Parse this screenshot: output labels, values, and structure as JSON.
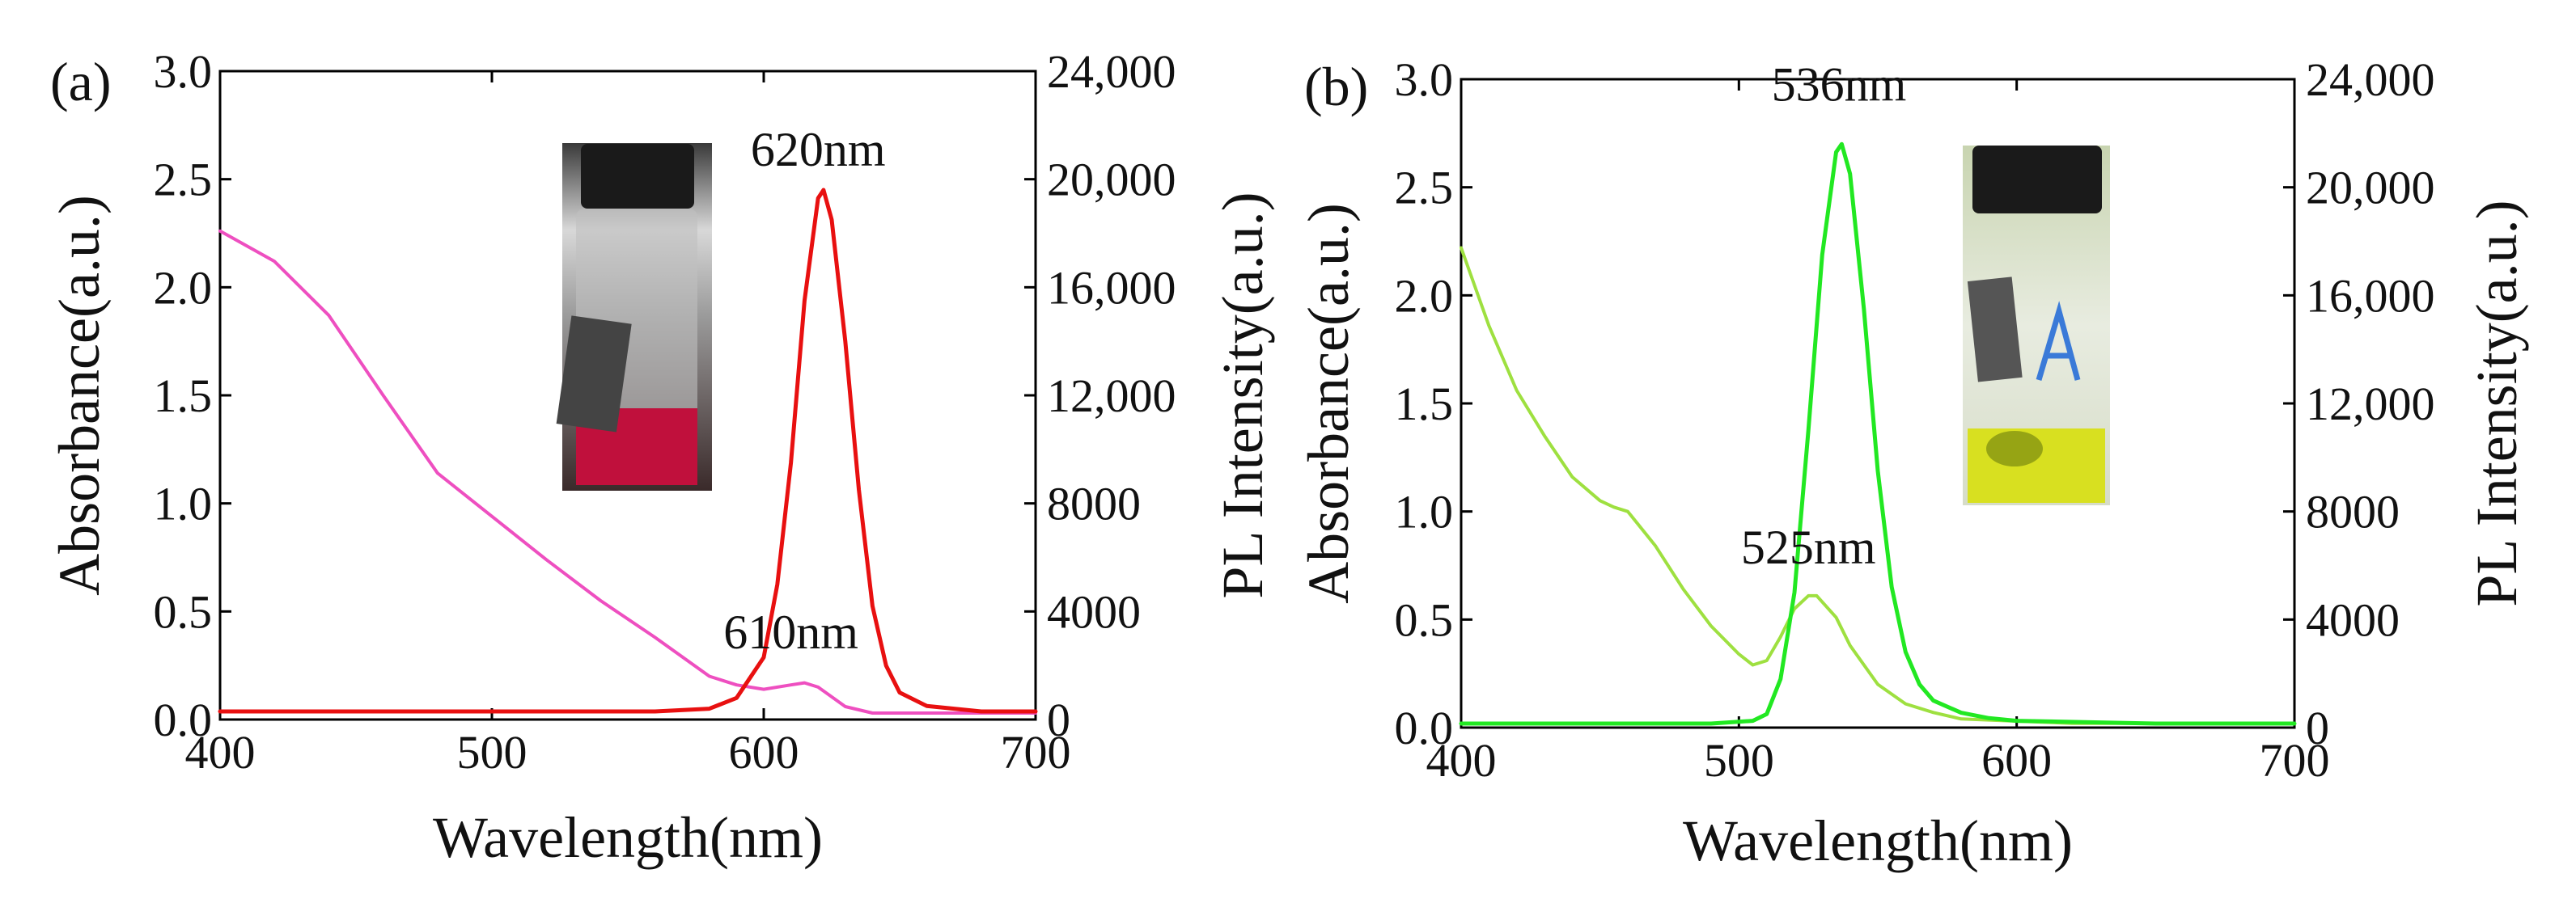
{
  "colors": {
    "abs_a": "#ee4fc0",
    "pl_a": "#e81010",
    "abs_b": "#9ee040",
    "pl_b": "#22e822",
    "vial_a_liquid": "#c0103c",
    "vial_b_liquid": "#d8e020"
  },
  "chart_data": [
    {
      "type": "line",
      "panel_label": "(a)",
      "xlabel": "Wavelength(nm)",
      "ylabel_left": "Absorbance(a.u.)",
      "ylabel_right": "PL Intensity(a.u.)",
      "xlim": [
        400,
        700
      ],
      "ylim_left": [
        0,
        3.0
      ],
      "ylim_right": [
        0,
        24000
      ],
      "x_ticks": [
        "400",
        "500",
        "600",
        "700"
      ],
      "y_left_ticks": [
        "0.0",
        "0.5",
        "1.0",
        "1.5",
        "2.0",
        "2.5",
        "3.0"
      ],
      "y_right_ticks": [
        "0",
        "4000",
        "8000",
        "12,000",
        "16,000",
        "20,000",
        "24,000"
      ],
      "annotations": [
        {
          "text": "620nm",
          "x": 620,
          "y_right": 20500
        },
        {
          "text": "610nm",
          "x": 610,
          "y_left": 0.33
        }
      ],
      "series": [
        {
          "name": "Absorbance",
          "axis": "left",
          "x": [
            400,
            420,
            440,
            460,
            480,
            500,
            520,
            540,
            560,
            580,
            590,
            600,
            610,
            615,
            620,
            630,
            640,
            650,
            660,
            670,
            680,
            690,
            700
          ],
          "values": [
            2.26,
            2.12,
            1.87,
            1.5,
            1.14,
            0.94,
            0.74,
            0.55,
            0.38,
            0.2,
            0.16,
            0.14,
            0.16,
            0.17,
            0.15,
            0.06,
            0.03,
            0.03,
            0.03,
            0.03,
            0.03,
            0.03,
            0.03
          ]
        },
        {
          "name": "PL Intensity",
          "axis": "right",
          "x": [
            400,
            560,
            580,
            590,
            600,
            605,
            610,
            615,
            620,
            622,
            625,
            630,
            635,
            640,
            645,
            650,
            660,
            680,
            700
          ],
          "values": [
            300,
            300,
            400,
            800,
            2300,
            5000,
            9500,
            15500,
            19300,
            19600,
            18500,
            14000,
            8500,
            4200,
            2000,
            1000,
            500,
            300,
            300
          ]
        }
      ]
    },
    {
      "type": "line",
      "panel_label": "(b)",
      "xlabel": "Wavelength(nm)",
      "ylabel_left": "Absorbance(a.u.)",
      "ylabel_right": "PL Intensity(a.u.)",
      "xlim": [
        400,
        700
      ],
      "ylim_left": [
        0,
        3.0
      ],
      "ylim_right": [
        0,
        24000
      ],
      "x_ticks": [
        "400",
        "500",
        "600",
        "700"
      ],
      "y_left_ticks": [
        "0.0",
        "0.5",
        "1.0",
        "1.5",
        "2.0",
        "2.5",
        "3.0"
      ],
      "y_right_ticks": [
        "0",
        "4000",
        "8000",
        "12,000",
        "16,000",
        "20,000",
        "24,000"
      ],
      "annotations": [
        {
          "text": "536nm",
          "x": 536,
          "y_right": 23200
        },
        {
          "text": "525nm",
          "x": 525,
          "y_left": 0.76
        }
      ],
      "series": [
        {
          "name": "Absorbance",
          "axis": "left",
          "x": [
            400,
            410,
            420,
            430,
            440,
            450,
            455,
            460,
            470,
            480,
            490,
            500,
            505,
            510,
            515,
            520,
            525,
            528,
            535,
            540,
            550,
            560,
            570,
            580,
            600,
            620,
            650,
            700
          ],
          "values": [
            2.22,
            1.86,
            1.56,
            1.35,
            1.16,
            1.05,
            1.02,
            1.0,
            0.84,
            0.64,
            0.47,
            0.34,
            0.29,
            0.31,
            0.42,
            0.55,
            0.61,
            0.61,
            0.51,
            0.38,
            0.2,
            0.11,
            0.07,
            0.04,
            0.03,
            0.02,
            0.02,
            0.02
          ]
        },
        {
          "name": "PL Intensity",
          "axis": "right",
          "x": [
            400,
            490,
            505,
            510,
            515,
            520,
            525,
            530,
            535,
            537,
            540,
            545,
            550,
            555,
            560,
            565,
            570,
            580,
            590,
            600,
            650,
            700
          ],
          "values": [
            150,
            150,
            250,
            500,
            1800,
            5000,
            11000,
            17500,
            21300,
            21600,
            20500,
            15500,
            9500,
            5200,
            2800,
            1600,
            1000,
            550,
            350,
            250,
            150,
            150
          ]
        }
      ]
    }
  ]
}
